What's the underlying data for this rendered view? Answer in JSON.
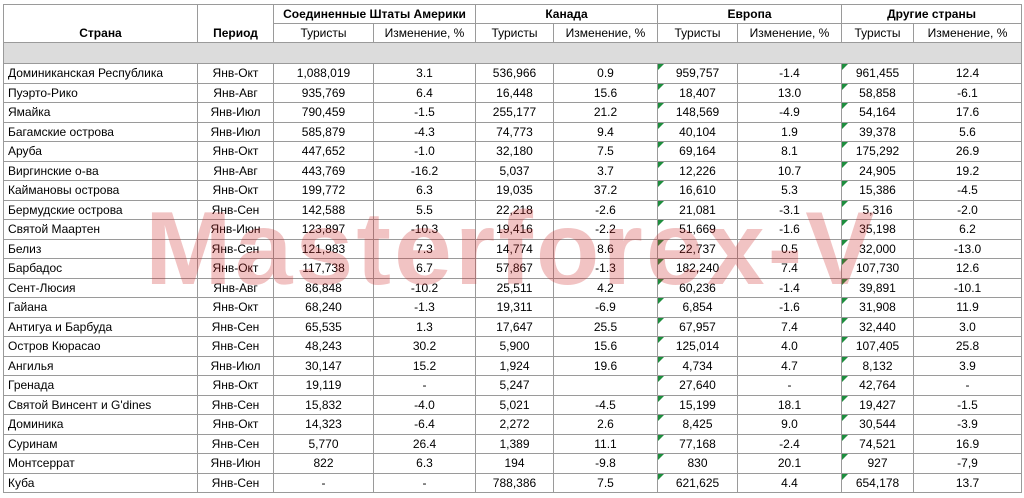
{
  "watermark": "Masterforex-V",
  "headers": {
    "country": "Страна",
    "period": "Период",
    "groups": [
      "Соединенные Штаты Америки",
      "Канада",
      "Европа",
      "Другие страны"
    ],
    "tourists": "Туристы",
    "change": "Изменение, %"
  },
  "rows": [
    {
      "country": "Доминиканская Республика",
      "period": "Янв-Окт",
      "values": [
        "1,088,019",
        "3.1",
        "536,966",
        "0.9",
        "959,757",
        "-1.4",
        "961,455",
        "12.4"
      ]
    },
    {
      "country": "Пуэрто-Рико",
      "period": "Янв-Авг",
      "values": [
        "935,769",
        "6.4",
        "16,448",
        "15.6",
        "18,407",
        "13.0",
        "58,858",
        "-6.1"
      ]
    },
    {
      "country": "Ямайка",
      "period": "Янв-Июл",
      "values": [
        "790,459",
        "-1.5",
        "255,177",
        "21.2",
        "148,569",
        "-4.9",
        "54,164",
        "17.6"
      ]
    },
    {
      "country": "Багамские острова",
      "period": "Янв-Июл",
      "values": [
        "585,879",
        "-4.3",
        "74,773",
        "9.4",
        "40,104",
        "1.9",
        "39,378",
        "5.6"
      ]
    },
    {
      "country": "Аруба",
      "period": "Янв-Окт",
      "values": [
        "447,652",
        "-1.0",
        "32,180",
        "7.5",
        "69,164",
        "8.1",
        "175,292",
        "26.9"
      ]
    },
    {
      "country": "Виргинские о-ва",
      "period": "Янв-Авг",
      "values": [
        "443,769",
        "-16.2",
        "5,037",
        "3.7",
        "12,226",
        "10.7",
        "24,905",
        "19.2"
      ]
    },
    {
      "country": "Каймановы острова",
      "period": "Янв-Окт",
      "values": [
        "199,772",
        "6.3",
        "19,035",
        "37.2",
        "16,610",
        "5.3",
        "15,386",
        "-4.5"
      ]
    },
    {
      "country": "Бермудские острова",
      "period": "Янв-Сен",
      "values": [
        "142,588",
        "5.5",
        "22,218",
        "-2.6",
        "21,081",
        "-3.1",
        "5,316",
        "-2.0"
      ]
    },
    {
      "country": "Святой Маартен",
      "period": "Янв-Июн",
      "values": [
        "123,897",
        "-10.3",
        "19,416",
        "-2.2",
        "51,669",
        "-1.6",
        "35,198",
        "6.2"
      ]
    },
    {
      "country": "Белиз",
      "period": "Янв-Сен",
      "values": [
        "121,983",
        "7.3",
        "14,774",
        "8.6",
        "22,737",
        "0.5",
        "32,000",
        "-13.0"
      ]
    },
    {
      "country": "Барбадос",
      "period": "Янв-Окт",
      "values": [
        "117,738",
        "6.7",
        "57,867",
        "-1.3",
        "182,240",
        "7.4",
        "107,730",
        "12.6"
      ]
    },
    {
      "country": "Сент-Люсия",
      "period": "Янв-Авг",
      "values": [
        "86,848",
        "-10.2",
        "25,511",
        "4.2",
        "60,236",
        "-1.4",
        "39,891",
        "-10.1"
      ]
    },
    {
      "country": "Гайана",
      "period": "Янв-Окт",
      "values": [
        "68,240",
        "-1.3",
        "19,311",
        "-6.9",
        "6,854",
        "-1.6",
        "31,908",
        "11.9"
      ]
    },
    {
      "country": "Антигуа и Барбуда",
      "period": "Янв-Сен",
      "values": [
        "65,535",
        "1.3",
        "17,647",
        "25.5",
        "67,957",
        "7.4",
        "32,440",
        "3.0"
      ]
    },
    {
      "country": "Остров Кюрасао",
      "period": "Янв-Сен",
      "values": [
        "48,243",
        "30.2",
        "5,900",
        "15.6",
        "125,014",
        "4.0",
        "107,405",
        "25.8"
      ]
    },
    {
      "country": "Ангилья",
      "period": "Янв-Июл",
      "values": [
        "30,147",
        "15.2",
        "1,924",
        "19.6",
        "4,734",
        "4.7",
        "8,132",
        "3.9"
      ]
    },
    {
      "country": "Гренада",
      "period": "Янв-Окт",
      "values": [
        "19,119",
        "-",
        "5,247",
        "",
        "27,640",
        "-",
        "42,764",
        "-"
      ]
    },
    {
      "country": "Святой Винсент и G'dines",
      "period": "Янв-Сен",
      "values": [
        "15,832",
        "-4.0",
        "5,021",
        "-4.5",
        "15,199",
        "18.1",
        "19,427",
        "-1.5"
      ]
    },
    {
      "country": "Доминика",
      "period": "Янв-Окт",
      "values": [
        "14,323",
        "-6.4",
        "2,272",
        "2.6",
        "8,425",
        "9.0",
        "30,544",
        "-3.9"
      ]
    },
    {
      "country": "Суринам",
      "period": "Янв-Сен",
      "values": [
        "5,770",
        "26.4",
        "1,389",
        "11.1",
        "77,168",
        "-2.4",
        "74,521",
        "16.9"
      ]
    },
    {
      "country": "Монтсеррат",
      "period": "Янв-Июн",
      "values": [
        "822",
        "6.3",
        "194",
        "-9.8",
        "830",
        "20.1",
        "927",
        "-7,9"
      ]
    },
    {
      "country": "Куба",
      "period": "Янв-Сен",
      "values": [
        "-",
        "-",
        "788,386",
        "7.5",
        "621,625",
        "4.4",
        "654,178",
        "13.7"
      ]
    }
  ],
  "colors": {
    "band": "#dcdcdc",
    "watermark": "#cd2828",
    "tick": "#1e8e3e",
    "border": "#9a9a9a"
  }
}
